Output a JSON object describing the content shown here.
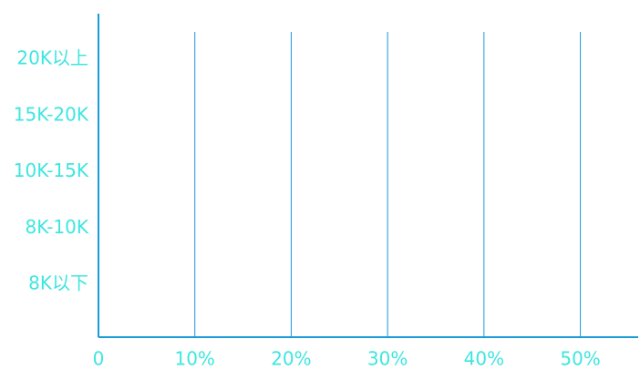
{
  "chart_data": {
    "type": "bar",
    "orientation": "horizontal",
    "categories": [
      "8K以下",
      "8K-10K",
      "10K-15K",
      "15K-20K",
      "20K以上"
    ],
    "xlim": [
      0,
      56
    ],
    "xticks": [
      0,
      {
        "value": 10,
        "label": "10%"
      },
      {
        "value": 20,
        "label": "20%"
      },
      {
        "value": 30,
        "label": "30%"
      },
      {
        "value": 40,
        "label": "40%"
      },
      {
        "value": 50,
        "label": "50%"
      }
    ],
    "grid": true,
    "color": "#1a9bd7"
  }
}
